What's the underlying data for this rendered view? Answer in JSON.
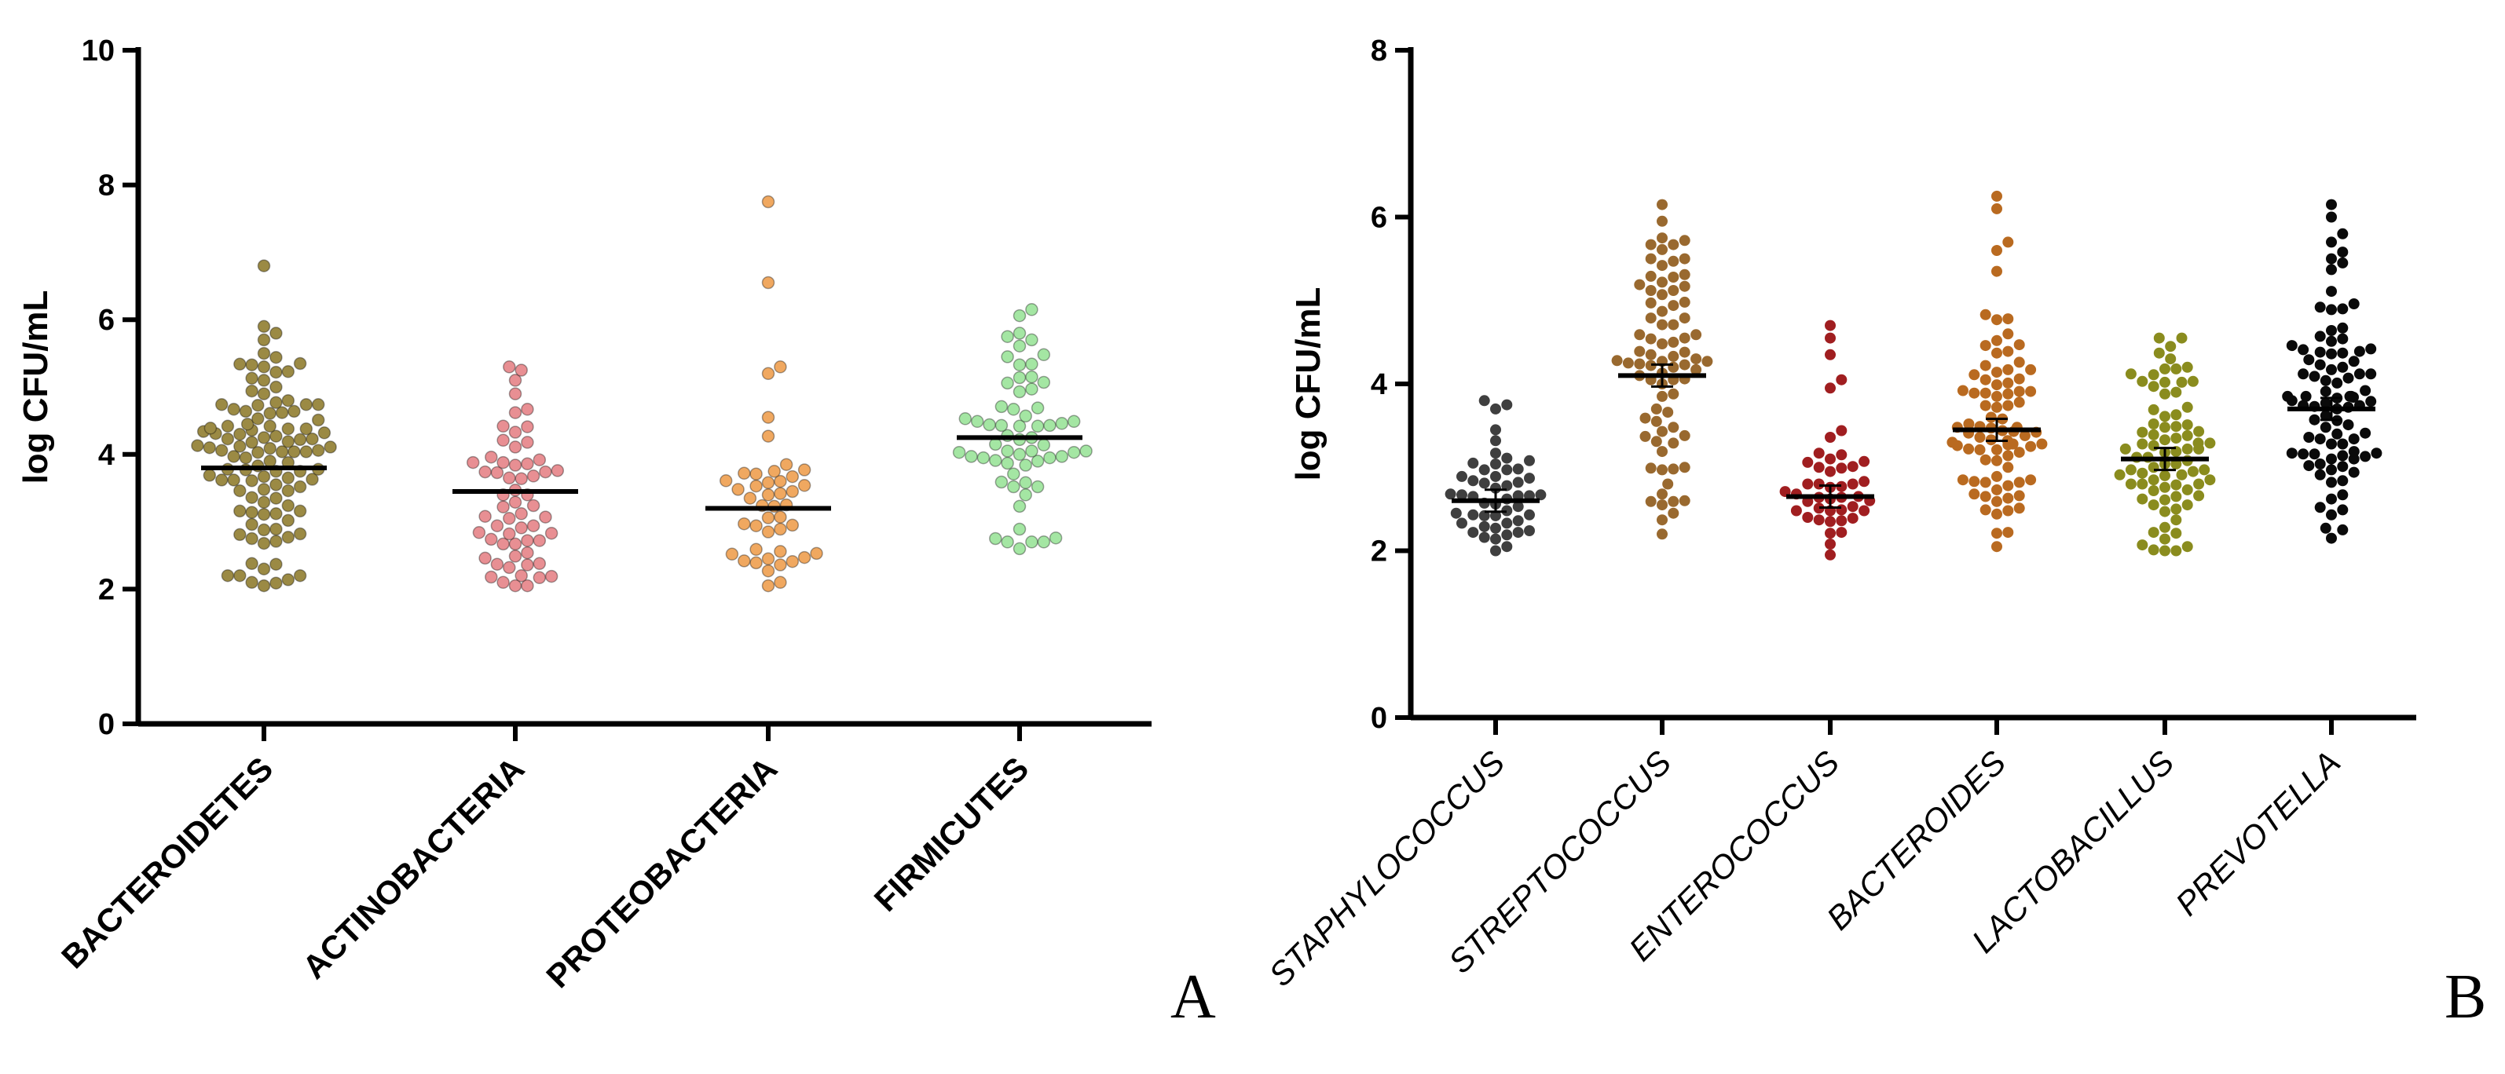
{
  "chart_data": [
    {
      "panel": "A",
      "type": "scatter",
      "ylabel": "log CFU/mL",
      "ylim": [
        0,
        10
      ],
      "yticks": [
        0,
        2,
        4,
        6,
        8,
        10
      ],
      "categories": [
        "BACTEROIDETES",
        "ACTINOBACTERIA",
        "PROTEOBACTERIA",
        "FIRMICUTES"
      ],
      "series": [
        {
          "name": "BACTEROIDETES",
          "color": "#9b8a44",
          "mean": 3.8,
          "n": 110,
          "min": 2.05,
          "max": 6.8,
          "highlights": [
            6.8,
            5.9,
            5.8,
            5.7,
            5.5,
            5.3,
            5.1,
            5.0,
            4.9,
            4.8,
            2.3,
            2.2,
            2.1,
            2.05
          ]
        },
        {
          "name": "ACTINOBACTERIA",
          "color": "#e88f93",
          "mean": 3.45,
          "n": 60,
          "min": 2.05,
          "max": 5.3,
          "highlights": [
            5.3,
            5.25,
            5.1,
            4.9,
            2.2,
            2.1,
            2.05
          ]
        },
        {
          "name": "PROTEOBACTERIA",
          "color": "#f0a860",
          "mean": 3.2,
          "n": 45,
          "min": 2.05,
          "max": 7.75,
          "highlights": [
            7.75,
            6.55,
            5.3,
            5.2,
            4.55,
            3.85,
            3.75,
            2.1,
            2.05
          ]
        },
        {
          "name": "FIRMICUTES",
          "color": "#a4e6a3",
          "mean": 4.25,
          "n": 62,
          "min": 2.6,
          "max": 6.15,
          "highlights": [
            6.15,
            5.8,
            5.75,
            5.7,
            2.75,
            2.7,
            2.6
          ]
        }
      ],
      "panel_label": "A"
    },
    {
      "panel": "B",
      "type": "scatter",
      "ylabel": "log CFU/mL",
      "ylim": [
        0,
        8
      ],
      "yticks": [
        0,
        2,
        4,
        6,
        8
      ],
      "categories": [
        "STAPHYLOCOCCUS",
        "STREPTOCOCCUS",
        "ENTEROCOCCUS",
        "BACTEROIDES",
        "LACTOBACILLUS",
        "PREVOTELLA"
      ],
      "series": [
        {
          "name": "STAPHYLOCOCCUS",
          "color": "#3f3f3f",
          "mean": 2.6,
          "n": 50,
          "min": 2.0,
          "max": 3.8,
          "highlights": [
            3.8,
            3.75,
            3.7,
            3.45,
            2.05,
            2.0
          ]
        },
        {
          "name": "STREPTOCOCCUS",
          "color": "#99692f",
          "mean": 4.1,
          "n": 80,
          "min": 2.2,
          "max": 6.15,
          "highlights": [
            6.15,
            5.95,
            5.75,
            5.5,
            2.6,
            2.55,
            2.2
          ]
        },
        {
          "name": "ENTEROCOCCUS",
          "color": "#a01e20",
          "mean": 2.65,
          "n": 45,
          "min": 1.95,
          "max": 4.7,
          "highlights": [
            4.7,
            4.55,
            4.35,
            4.05,
            3.95,
            1.95
          ]
        },
        {
          "name": "BACTEROIDES",
          "color": "#b96a20",
          "mean": 3.45,
          "n": 85,
          "min": 2.05,
          "max": 6.25,
          "highlights": [
            6.25,
            6.1,
            5.7,
            5.6,
            5.35,
            2.05
          ]
        },
        {
          "name": "LACTOBACILLUS",
          "color": "#8a8c1e",
          "mean": 3.1,
          "n": 80,
          "min": 2.0,
          "max": 4.55,
          "highlights": [
            4.55,
            4.45,
            4.3,
            2.05,
            2.0
          ]
        },
        {
          "name": "PREVOTELLA",
          "color": "#0a0a0a",
          "mean": 3.7,
          "n": 90,
          "min": 2.15,
          "max": 6.15,
          "highlights": [
            6.15,
            6.0,
            5.8,
            5.7,
            5.45,
            2.25,
            2.15
          ]
        }
      ],
      "panel_label": "B"
    }
  ]
}
